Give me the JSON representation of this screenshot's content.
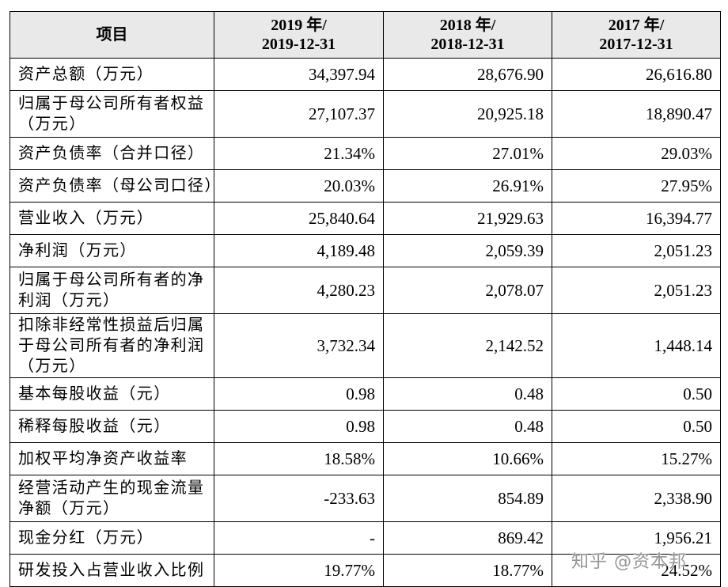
{
  "table": {
    "header": {
      "item_label": "项目",
      "years": [
        {
          "line1": "2019 年/",
          "line2": "2019-12-31"
        },
        {
          "line1": "2018 年/",
          "line2": "2018-12-31"
        },
        {
          "line1": "2017 年/",
          "line2": "2017-12-31"
        }
      ]
    },
    "rows": [
      {
        "label_lines": [
          "资产总额（万元）"
        ],
        "values": [
          "34,397.94",
          "28,676.90",
          "26,616.80"
        ]
      },
      {
        "label_lines": [
          "归属于母公司所有者权益",
          "（万元）"
        ],
        "values": [
          "27,107.37",
          "20,925.18",
          "18,890.47"
        ]
      },
      {
        "label_lines": [
          "资产负债率（合并口径）"
        ],
        "values": [
          "21.34%",
          "27.01%",
          "29.03%"
        ]
      },
      {
        "label_lines": [
          "资产负债率（母公司口径）"
        ],
        "values": [
          "20.03%",
          "26.91%",
          "27.95%"
        ]
      },
      {
        "label_lines": [
          "营业收入（万元）"
        ],
        "values": [
          "25,840.64",
          "21,929.63",
          "16,394.77"
        ]
      },
      {
        "label_lines": [
          "净利润（万元）"
        ],
        "values": [
          "4,189.48",
          "2,059.39",
          "2,051.23"
        ]
      },
      {
        "label_lines": [
          "归属于母公司所有者的净",
          "利润（万元）"
        ],
        "values": [
          "4,280.23",
          "2,078.07",
          "2,051.23"
        ]
      },
      {
        "label_lines": [
          "扣除非经常性损益后归属",
          "于母公司所有者的净利润",
          "（万元）"
        ],
        "values": [
          "3,732.34",
          "2,142.52",
          "1,448.14"
        ]
      },
      {
        "label_lines": [
          "基本每股收益（元）"
        ],
        "values": [
          "0.98",
          "0.48",
          "0.50"
        ]
      },
      {
        "label_lines": [
          "稀释每股收益（元）"
        ],
        "values": [
          "0.98",
          "0.48",
          "0.50"
        ]
      },
      {
        "label_lines": [
          "加权平均净资产收益率"
        ],
        "values": [
          "18.58%",
          "10.66%",
          "15.27%"
        ]
      },
      {
        "label_lines": [
          "经营活动产生的现金流量",
          "净额（万元）"
        ],
        "values": [
          "-233.63",
          "854.89",
          "2,338.90"
        ]
      },
      {
        "label_lines": [
          "现金分红（万元）"
        ],
        "values": [
          "-",
          "869.42",
          "1,956.21"
        ]
      },
      {
        "label_lines": [
          "研发投入占营业收入比例"
        ],
        "values": [
          "19.77%",
          "18.77%",
          "24.52%"
        ]
      }
    ]
  },
  "watermark": "知乎 @资本邦",
  "colors": {
    "header_background": "#e9e9e9",
    "border": "#000000",
    "watermark": "#828282"
  }
}
